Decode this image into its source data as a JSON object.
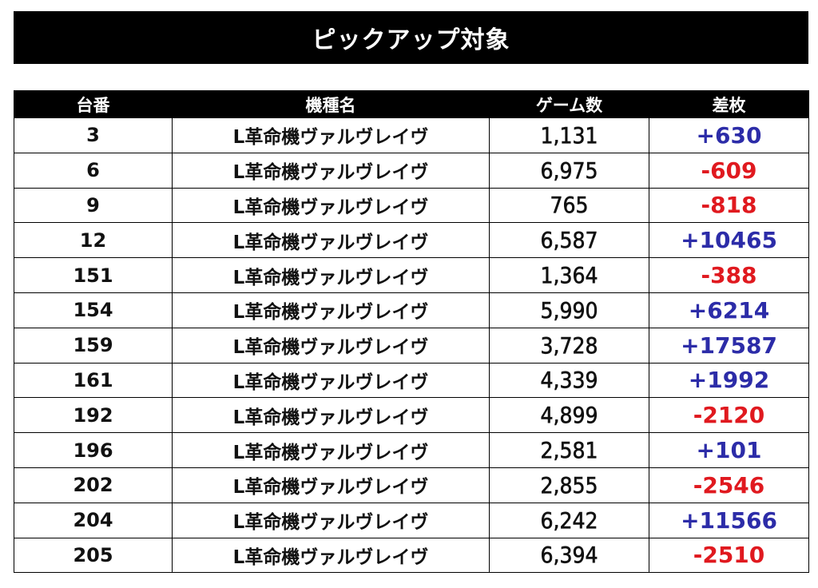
{
  "title": "ピックアップ対象",
  "headers": {
    "machine_number": "台番",
    "machine_name": "機種名",
    "games": "ゲーム数",
    "difference": "差枚"
  },
  "colors": {
    "positive": "#2c2ca8",
    "negative": "#e0191f",
    "header_bg": "#000000"
  },
  "rows": [
    {
      "number": "3",
      "name": "L革命機ヴァルヴレイヴ",
      "games": "1,131",
      "diff": "+630",
      "sign": "pos"
    },
    {
      "number": "6",
      "name": "L革命機ヴァルヴレイヴ",
      "games": "6,975",
      "diff": "-609",
      "sign": "neg"
    },
    {
      "number": "9",
      "name": "L革命機ヴァルヴレイヴ",
      "games": "765",
      "diff": "-818",
      "sign": "neg"
    },
    {
      "number": "12",
      "name": "L革命機ヴァルヴレイヴ",
      "games": "6,587",
      "diff": "+10465",
      "sign": "pos"
    },
    {
      "number": "151",
      "name": "L革命機ヴァルヴレイヴ",
      "games": "1,364",
      "diff": "-388",
      "sign": "neg"
    },
    {
      "number": "154",
      "name": "L革命機ヴァルヴレイヴ",
      "games": "5,990",
      "diff": "+6214",
      "sign": "pos"
    },
    {
      "number": "159",
      "name": "L革命機ヴァルヴレイヴ",
      "games": "3,728",
      "diff": "+17587",
      "sign": "pos"
    },
    {
      "number": "161",
      "name": "L革命機ヴァルヴレイヴ",
      "games": "4,339",
      "diff": "+1992",
      "sign": "pos"
    },
    {
      "number": "192",
      "name": "L革命機ヴァルヴレイヴ",
      "games": "4,899",
      "diff": "-2120",
      "sign": "neg"
    },
    {
      "number": "196",
      "name": "L革命機ヴァルヴレイヴ",
      "games": "2,581",
      "diff": "+101",
      "sign": "pos"
    },
    {
      "number": "202",
      "name": "L革命機ヴァルヴレイヴ",
      "games": "2,855",
      "diff": "-2546",
      "sign": "neg"
    },
    {
      "number": "204",
      "name": "L革命機ヴァルヴレイヴ",
      "games": "6,242",
      "diff": "+11566",
      "sign": "pos"
    },
    {
      "number": "205",
      "name": "L革命機ヴァルヴレイヴ",
      "games": "6,394",
      "diff": "-2510",
      "sign": "neg"
    }
  ]
}
